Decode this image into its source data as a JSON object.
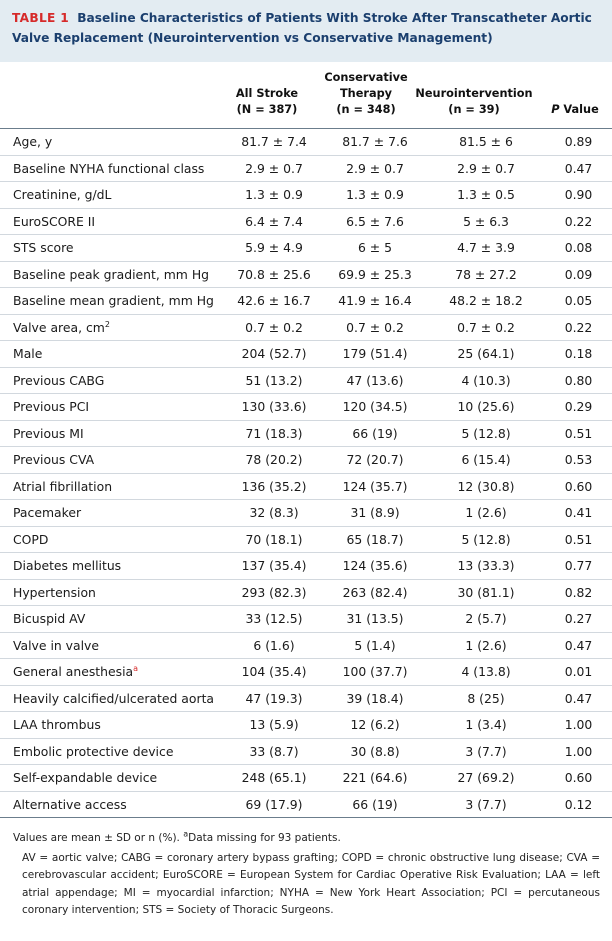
{
  "title": {
    "number": "TABLE 1",
    "line1": "Baseline Characteristics of Patients With Stroke After Transcatheter Aortic",
    "line2": "Valve Replacement (Neurointervention vs Conservative Management)"
  },
  "columns": {
    "all_l1": "All Stroke",
    "all_l2": "(N = 387)",
    "cons_l1": "Conservative",
    "cons_l2": "Therapy",
    "cons_l3": "(n = 348)",
    "neuro_l1": "Neurointervention",
    "neuro_l2": "(n = 39)",
    "p_italic": "P",
    "p_rest": " Value"
  },
  "rows": [
    {
      "label": "Age, y",
      "all": "81.7 ± 7.4",
      "cons": "81.7 ± 7.6",
      "neuro": "81.5 ± 6",
      "p": "0.89"
    },
    {
      "label": "Baseline NYHA functional class",
      "all": "2.9 ± 0.7",
      "cons": "2.9 ± 0.7",
      "neuro": "2.9 ± 0.7",
      "p": "0.47"
    },
    {
      "label": "Creatinine, g/dL",
      "all": "1.3 ± 0.9",
      "cons": "1.3 ± 0.9",
      "neuro": "1.3 ± 0.5",
      "p": "0.90"
    },
    {
      "label": "EuroSCORE II",
      "all": "6.4 ± 7.4",
      "cons": "6.5 ± 7.6",
      "neuro": "5 ± 6.3",
      "p": "0.22"
    },
    {
      "label": "STS score",
      "all": "5.9 ± 4.9",
      "cons": "6 ± 5",
      "neuro": "4.7 ± 3.9",
      "p": "0.08"
    },
    {
      "label": "Baseline peak gradient, mm Hg",
      "all": "70.8 ± 25.6",
      "cons": "69.9 ± 25.3",
      "neuro": "78 ± 27.2",
      "p": "0.09"
    },
    {
      "label": "Baseline mean gradient, mm Hg",
      "all": "42.6 ± 16.7",
      "cons": "41.9 ± 16.4",
      "neuro": "48.2 ± 18.2",
      "p": "0.05"
    },
    {
      "label": "Valve area, cm",
      "sup": "2",
      "all": "0.7 ± 0.2",
      "cons": "0.7 ± 0.2",
      "neuro": "0.7 ± 0.2",
      "p": "0.22"
    },
    {
      "label": "Male",
      "all": "204 (52.7)",
      "cons": "179 (51.4)",
      "neuro": "25 (64.1)",
      "p": "0.18"
    },
    {
      "label": "Previous CABG",
      "all": "51 (13.2)",
      "cons": "47 (13.6)",
      "neuro": "4 (10.3)",
      "p": "0.80"
    },
    {
      "label": "Previous PCI",
      "all": "130 (33.6)",
      "cons": "120 (34.5)",
      "neuro": "10 (25.6)",
      "p": "0.29"
    },
    {
      "label": "Previous MI",
      "all": "71 (18.3)",
      "cons": "66 (19)",
      "neuro": "5 (12.8)",
      "p": "0.51"
    },
    {
      "label": "Previous CVA",
      "all": "78 (20.2)",
      "cons": "72 (20.7)",
      "neuro": "6 (15.4)",
      "p": "0.53"
    },
    {
      "label": "Atrial fibrillation",
      "all": "136 (35.2)",
      "cons": "124 (35.7)",
      "neuro": "12 (30.8)",
      "p": "0.60"
    },
    {
      "label": "Pacemaker",
      "all": "32 (8.3)",
      "cons": "31 (8.9)",
      "neuro": "1 (2.6)",
      "p": "0.41"
    },
    {
      "label": "COPD",
      "all": "70 (18.1)",
      "cons": "65 (18.7)",
      "neuro": "5 (12.8)",
      "p": "0.51"
    },
    {
      "label": "Diabetes mellitus",
      "all": "137 (35.4)",
      "cons": "124 (35.6)",
      "neuro": "13 (33.3)",
      "p": "0.77"
    },
    {
      "label": "Hypertension",
      "all": "293 (82.3)",
      "cons": "263 (82.4)",
      "neuro": "30 (81.1)",
      "p": "0.82"
    },
    {
      "label": "Bicuspid AV",
      "all": "33 (12.5)",
      "cons": "31 (13.5)",
      "neuro": "2 (5.7)",
      "p": "0.27"
    },
    {
      "label": "Valve in valve",
      "all": "6 (1.6)",
      "cons": "5 (1.4)",
      "neuro": "1 (2.6)",
      "p": "0.47"
    },
    {
      "label": "General anesthesia",
      "footref": "a",
      "all": "104 (35.4)",
      "cons": "100 (37.7)",
      "neuro": "4 (13.8)",
      "p": "0.01"
    },
    {
      "label": "Heavily calcified/ulcerated aorta",
      "all": "47 (19.3)",
      "cons": "39 (18.4)",
      "neuro": "8 (25)",
      "p": "0.47"
    },
    {
      "label": "LAA thrombus",
      "all": "13 (5.9)",
      "cons": "12 (6.2)",
      "neuro": "1 (3.4)",
      "p": "1.00"
    },
    {
      "label": "Embolic protective device",
      "all": "33 (8.7)",
      "cons": "30 (8.8)",
      "neuro": "3 (7.7)",
      "p": "1.00"
    },
    {
      "label": "Self-expandable device",
      "all": "248 (65.1)",
      "cons": "221 (64.6)",
      "neuro": "27 (69.2)",
      "p": "0.60"
    },
    {
      "label": "Alternative access",
      "all": "69 (17.9)",
      "cons": "66 (19)",
      "neuro": "3 (7.7)",
      "p": "0.12"
    }
  ],
  "footnotes": {
    "line1_before": "Values are mean ± SD or n (%). ",
    "line1_sup": "a",
    "line1_after": "Data missing for 93 patients.",
    "abbreviations": "AV = aortic valve; CABG = coronary artery bypass grafting; COPD = chronic obstructive lung disease; CVA = cerebrovascular accident; EuroSCORE = European System for Cardiac Operative Risk Evaluation; LAA = left atrial appendage; MI = myocardial infarction; NYHA = New York Heart Association; PCI = percutaneous coronary intervention; STS = Society of Thoracic Surgeons."
  },
  "colors": {
    "header_bg": "#e3ecf2",
    "title_text": "#1b3f6e",
    "table_number": "#d62a2a"
  }
}
